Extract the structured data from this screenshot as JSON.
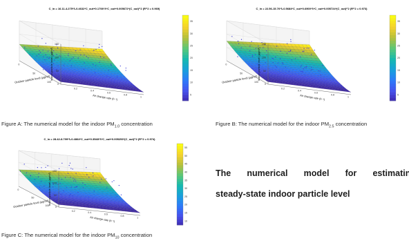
{
  "chart_data": [
    {
      "type": "surface3d",
      "equation": "C_in = 16.11-4.275*λ-0.4632*C_out+0.1706*λ*C_out+0.005672*(C_out)^2 (R^2 = 0.969)",
      "zlabel": "Indoor particle level (µg/m³)",
      "xlabel": "Outdoor particle level (µg/m³)",
      "ylabel": "Air change rate (h⁻¹)",
      "zticks": [
        "0",
        "50",
        "100",
        "150"
      ],
      "xticks": [
        "100",
        "50",
        "0"
      ],
      "yticks": [
        "0.2",
        "0.4",
        "0.6",
        "0.8",
        "1"
      ],
      "colorbar_ticks": [
        "5",
        "10",
        "15",
        "20",
        "25",
        "30",
        "35"
      ],
      "caption_prefix": "Figure A: The numerical model for the indoor PM",
      "caption_sub": "1.0",
      "caption_suffix": " concentration"
    },
    {
      "type": "surface3d",
      "equation": "C_in = 22.56-15.76*λ-0.5684*C_out+0.6900*λ*C_out+0.005724*(C_out)^2 (R^2 = 0.973)",
      "zlabel": "Indoor particle level (µg/m³)",
      "xlabel": "Outdoor particle level (µg/m³)",
      "ylabel": "Air change rate (h⁻¹)",
      "zticks": [
        "0",
        "50",
        "100",
        "150"
      ],
      "xticks": [
        "100",
        "50",
        "0"
      ],
      "yticks": [
        "0.2",
        "0.4",
        "0.6",
        "0.8",
        "1"
      ],
      "colorbar_ticks": [
        "5",
        "10",
        "15",
        "20",
        "25",
        "30",
        "35"
      ],
      "caption_prefix": "Figure B: The numerical model for the indoor PM",
      "caption_sub": "2.5",
      "caption_suffix": " concentration"
    },
    {
      "type": "surface3d",
      "equation": "C_in = 28.42-8.799*λ-0.4864*C_out+0.3548*λ*C_out+0.005253*(C_out)^2 (R^2 = 0.974)",
      "zlabel": "Indoor particle level (µg/m³)",
      "xlabel": "Outdoor particle level (µg/m³)",
      "ylabel": "Air change rate (h⁻¹)",
      "zticks": [
        "0",
        "50",
        "100",
        "150"
      ],
      "xticks": [
        "100",
        "50",
        "0"
      ],
      "yticks": [
        "0.2",
        "0.4",
        "0.6",
        "0.8",
        "1"
      ],
      "colorbar_ticks": [
        "10",
        "15",
        "20",
        "25",
        "30",
        "35",
        "40",
        "45",
        "50",
        "55"
      ],
      "caption_prefix": "Figure C: The numerical model for the indoor PM",
      "caption_sub": "10",
      "caption_suffix": " concentration"
    }
  ],
  "headline": {
    "line1_words": [
      "The",
      "numerical",
      "model",
      "for",
      "estimating"
    ],
    "line2": "steady-state indoor particle level"
  }
}
